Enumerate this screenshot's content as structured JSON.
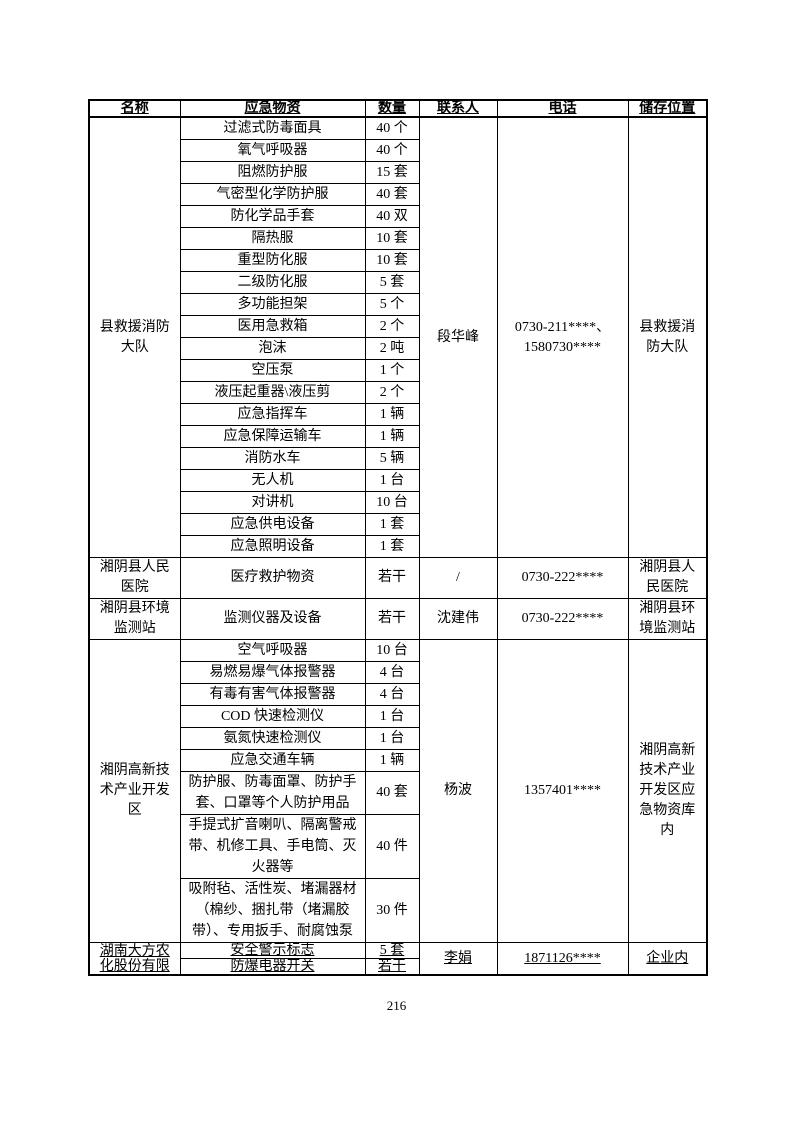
{
  "page": {
    "number": "216"
  },
  "table": {
    "headers": [
      "名称",
      "应急物资",
      "数量",
      "联系人",
      "电话",
      "储存位置"
    ],
    "sections": [
      {
        "name": "县救援消防\n大队",
        "contact": "段华峰",
        "phone": "0730-211****、\n1580730****",
        "storage": "县救援消\n防大队",
        "underline": false,
        "items": [
          {
            "material": "过滤式防毒面具",
            "quantity": "40 个"
          },
          {
            "material": "氧气呼吸器",
            "quantity": "40 个"
          },
          {
            "material": "阻燃防护服",
            "quantity": "15 套"
          },
          {
            "material": "气密型化学防护服",
            "quantity": "40 套"
          },
          {
            "material": "防化学品手套",
            "quantity": "40 双"
          },
          {
            "material": "隔热服",
            "quantity": "10 套"
          },
          {
            "material": "重型防化服",
            "quantity": "10 套"
          },
          {
            "material": "二级防化服",
            "quantity": "5 套"
          },
          {
            "material": "多功能担架",
            "quantity": "5 个"
          },
          {
            "material": "医用急救箱",
            "quantity": "2 个"
          },
          {
            "material": "泡沫",
            "quantity": "2 吨"
          },
          {
            "material": "空压泵",
            "quantity": "1 个"
          },
          {
            "material": "液压起重器\\液压剪",
            "quantity": "2 个"
          },
          {
            "material": "应急指挥车",
            "quantity": "1 辆"
          },
          {
            "material": "应急保障运输车",
            "quantity": "1 辆"
          },
          {
            "material": "消防水车",
            "quantity": "5 辆"
          },
          {
            "material": "无人机",
            "quantity": "1 台"
          },
          {
            "material": "对讲机",
            "quantity": "10 台"
          },
          {
            "material": "应急供电设备",
            "quantity": "1 套"
          },
          {
            "material": "应急照明设备",
            "quantity": "1 套"
          }
        ]
      },
      {
        "name": "湘阴县人民\n医院",
        "contact": "/",
        "phone": "0730-222****",
        "storage": "湘阴县人\n民医院",
        "underline": false,
        "items": [
          {
            "material": "医疗救护物资",
            "quantity": "若干"
          }
        ]
      },
      {
        "name": "湘阴县环境\n监测站",
        "contact": "沈建伟",
        "phone": "0730-222****",
        "storage": "湘阴县环\n境监测站",
        "underline": false,
        "items": [
          {
            "material": "监测仪器及设备",
            "quantity": "若干"
          }
        ]
      },
      {
        "name": "湘阴高新技\n术产业开发\n区",
        "contact": "杨波",
        "phone": "1357401****",
        "storage": "湘阴高新\n技术产业\n开发区应\n急物资库\n内",
        "underline": false,
        "items": [
          {
            "material": "空气呼吸器",
            "quantity": "10 台"
          },
          {
            "material": "易燃易爆气体报警器",
            "quantity": "4 台"
          },
          {
            "material": "有毒有害气体报警器",
            "quantity": "4 台"
          },
          {
            "material": "COD 快速检测仪",
            "quantity": "1 台"
          },
          {
            "material": "氨氮快速检测仪",
            "quantity": "1 台"
          },
          {
            "material": "应急交通车辆",
            "quantity": "1 辆"
          },
          {
            "material": "防护服、防毒面罩、防护手套、口罩等个人防护用品",
            "quantity": "40 套"
          },
          {
            "material": "手提式扩音喇叭、隔离警戒带、机修工具、手电筒、灭火器等",
            "quantity": "40 件"
          },
          {
            "material": "吸附毡、活性炭、堵漏器材（棉纱、捆扎带（堵漏胶带）、专用扳手、耐腐蚀泵",
            "quantity": "30 件"
          }
        ]
      },
      {
        "name": "湖南大方农\n化股份有限",
        "contact": "李娟",
        "phone": "1871126****",
        "storage": "企业内",
        "underline": true,
        "items": [
          {
            "material": "安全警示标志",
            "quantity": "5 套"
          },
          {
            "material": "防爆电器开关",
            "quantity": "若干"
          }
        ]
      }
    ]
  }
}
